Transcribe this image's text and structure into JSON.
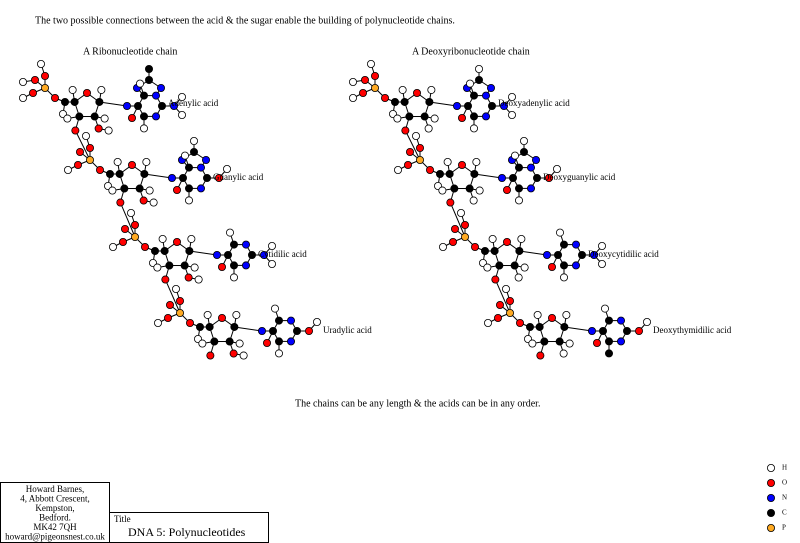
{
  "header": {
    "text": "The two possible connections between the acid & the sugar enable the building of polynucleotide chains."
  },
  "chains": [
    {
      "title": "A Ribonucleotide chain",
      "acids": [
        "Adenylic acid",
        "Guanylic acid",
        "Cytidilic acid",
        "Uradylic acid"
      ]
    },
    {
      "title": "A Deoxyribonucleotide chain",
      "acids": [
        "Deoxyadenylic acid",
        "Deoxyguanylic acid",
        "Deoxycytidilic acid",
        "Deoxythymidilic acid"
      ]
    }
  ],
  "note": "The chains can be any length & the acids can be in any order.",
  "legend": [
    {
      "label": "H",
      "color": "#ffffff"
    },
    {
      "label": "O",
      "color": "#ff0000"
    },
    {
      "label": "N",
      "color": "#0000ff"
    },
    {
      "label": "C",
      "color": "#000000"
    },
    {
      "label": "P",
      "color": "#ffaa22"
    }
  ],
  "address": [
    "Howard Barnes,",
    "4, Abbott Crescent,",
    "Kempston,",
    "Bedford.",
    "MK42   7QH",
    "howard@pigeonsnest.co.uk"
  ],
  "title_box": {
    "label": "Title",
    "title": "DNA 5: Polynucleotides"
  }
}
